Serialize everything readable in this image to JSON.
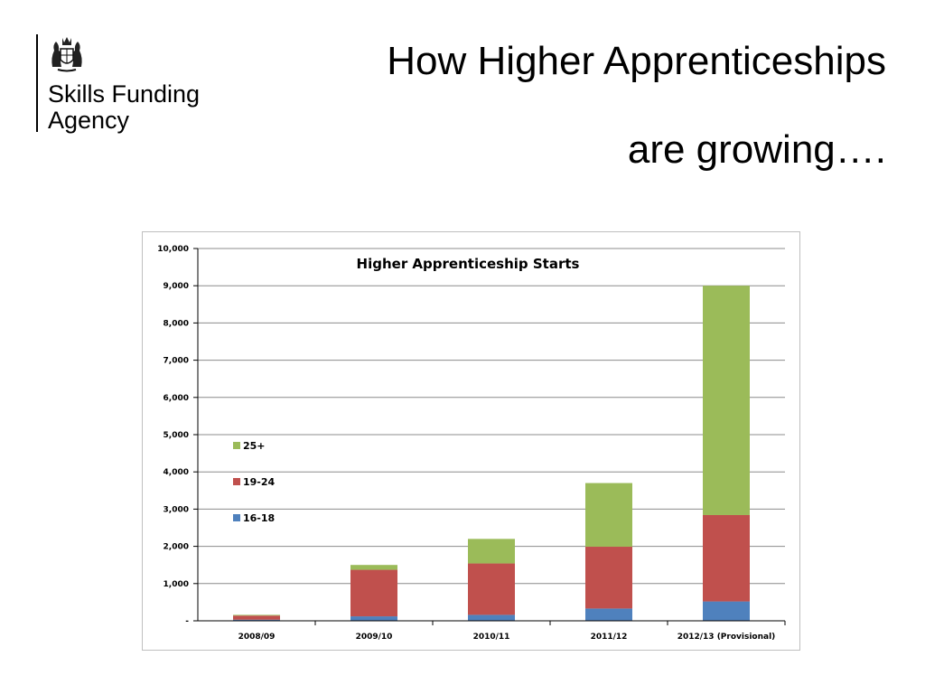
{
  "logo": {
    "line1": "Skills Funding",
    "line2": "Agency"
  },
  "title": {
    "line1": "How Higher Apprenticeships",
    "line2": "are growing…."
  },
  "colors": {
    "25+": "#9bbb59",
    "19-24": "#c0504d",
    "16-18": "#4f81bd",
    "grid": "#8c8c8c"
  },
  "chart_data": {
    "type": "bar",
    "stacked": true,
    "title": "Higher Apprenticeship Starts",
    "categories": [
      "2008/09",
      "2009/10",
      "2010/11",
      "2011/12",
      "2012/13 (Provisional)"
    ],
    "series": [
      {
        "name": "16-18",
        "values": [
          30,
          120,
          160,
          330,
          520
        ]
      },
      {
        "name": "19-24",
        "values": [
          110,
          1250,
          1380,
          1660,
          2320
        ]
      },
      {
        "name": "25+",
        "values": [
          20,
          130,
          660,
          1710,
          6160
        ]
      }
    ],
    "yticks": [
      "-",
      "1,000",
      "2,000",
      "3,000",
      "4,000",
      "5,000",
      "6,000",
      "7,000",
      "8,000",
      "9,000",
      "10,000"
    ],
    "ylim": [
      0,
      10000
    ],
    "grid": true,
    "legend_position": "left-middle",
    "legend_order": [
      "25+",
      "19-24",
      "16-18"
    ]
  }
}
